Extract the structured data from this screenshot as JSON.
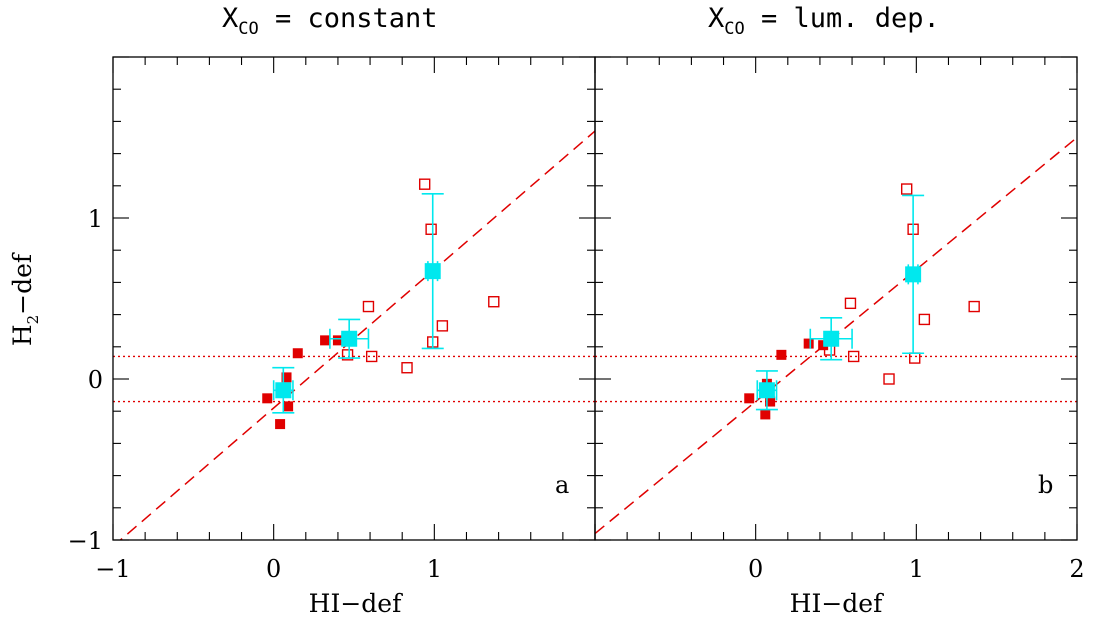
{
  "chart_data": [
    {
      "type": "scatter",
      "panel_label": "a",
      "title": "X",
      "title_sub": "CO",
      "title_rest": " = constant",
      "xlabel": "HI−def",
      "ylabel": "H",
      "ylabel_sub": "2",
      "ylabel_rest": "−def",
      "xlim": [
        -1,
        2
      ],
      "ylim": [
        -1,
        2
      ],
      "x_ticks": [
        "−1",
        "0",
        "1"
      ],
      "y_ticks": [
        "−1",
        "0",
        "1"
      ],
      "regression_line": {
        "slope": 0.86,
        "intercept": -0.18,
        "style": "dashed",
        "color": "#e00000"
      },
      "reference_lines": [
        0.14,
        -0.14
      ],
      "series": [
        {
          "style": "filled-red",
          "color": "#e00000",
          "points": [
            [
              -0.04,
              -0.12
            ],
            [
              0.04,
              -0.28
            ],
            [
              0.09,
              -0.17
            ],
            [
              0.08,
              0.01
            ],
            [
              0.15,
              0.16
            ],
            [
              0.32,
              0.24
            ],
            [
              0.4,
              0.24
            ]
          ]
        },
        {
          "style": "open-red",
          "color": "#e00000",
          "points": [
            [
              0.46,
              0.15
            ],
            [
              0.59,
              0.45
            ],
            [
              0.61,
              0.14
            ],
            [
              0.83,
              0.07
            ],
            [
              0.94,
              1.21
            ],
            [
              0.98,
              0.93
            ],
            [
              0.99,
              0.23
            ],
            [
              1.05,
              0.33
            ],
            [
              1.37,
              0.48
            ]
          ]
        },
        {
          "style": "mean-cyan",
          "color": "#00e8ee",
          "points": [
            {
              "x": 0.06,
              "y": -0.07,
              "yerr": 0.14,
              "xerr": 0.06
            },
            {
              "x": 0.47,
              "y": 0.25,
              "yerr": 0.12,
              "xerr": 0.12
            },
            {
              "x": 0.99,
              "y": 0.67,
              "yerr": 0.48,
              "xerr": 0.03
            }
          ]
        }
      ]
    },
    {
      "type": "scatter",
      "panel_label": "b",
      "title": "X",
      "title_sub": "CO",
      "title_rest": " = lum. dep.",
      "xlabel": "HI−def",
      "xlim": [
        -1,
        2
      ],
      "ylim": [
        -1,
        2
      ],
      "x_ticks": [
        "0",
        "1",
        "2"
      ],
      "regression_line": {
        "slope": 0.82,
        "intercept": -0.14,
        "style": "dashed",
        "color": "#e00000"
      },
      "reference_lines": [
        0.14,
        -0.14
      ],
      "series": [
        {
          "style": "filled-red",
          "color": "#e00000",
          "points": [
            [
              -0.04,
              -0.12
            ],
            [
              0.06,
              -0.22
            ],
            [
              0.09,
              -0.14
            ],
            [
              0.07,
              -0.03
            ],
            [
              0.16,
              0.15
            ],
            [
              0.33,
              0.22
            ],
            [
              0.42,
              0.21
            ]
          ]
        },
        {
          "style": "open-red",
          "color": "#e00000",
          "points": [
            [
              0.46,
              0.18
            ],
            [
              0.59,
              0.47
            ],
            [
              0.61,
              0.14
            ],
            [
              0.83,
              0.0
            ],
            [
              0.94,
              1.18
            ],
            [
              0.98,
              0.93
            ],
            [
              0.99,
              0.13
            ],
            [
              1.05,
              0.37
            ],
            [
              1.36,
              0.45
            ]
          ]
        },
        {
          "style": "mean-cyan",
          "color": "#00e8ee",
          "points": [
            {
              "x": 0.07,
              "y": -0.07,
              "yerr": 0.12,
              "xerr": 0.06
            },
            {
              "x": 0.47,
              "y": 0.25,
              "yerr": 0.13,
              "xerr": 0.13
            },
            {
              "x": 0.98,
              "y": 0.65,
              "yerr": 0.49,
              "xerr": 0.03
            }
          ]
        }
      ]
    }
  ]
}
